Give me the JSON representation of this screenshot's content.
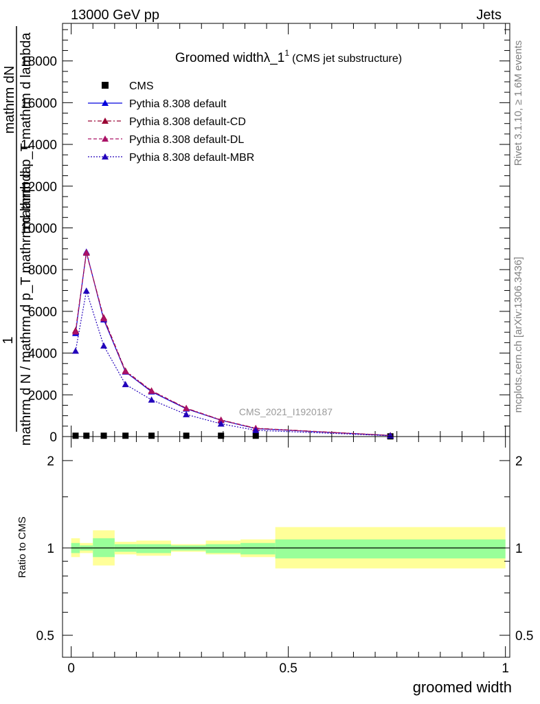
{
  "header": {
    "left": "13000 GeV pp",
    "right": "Jets"
  },
  "side_text": {
    "rivet": "Rivet 3.1.10, ≥ 1.6M events",
    "mcplots": "mcplots.cern.ch [arXiv:1306.3436]"
  },
  "chart_data": [
    {
      "type": "line",
      "title_main": "Groomed width",
      "title_lambda": "λ_1",
      "title_sup": "1",
      "title_note": "(CMS jet substructure)",
      "watermark": "CMS_2021_I1920187",
      "ylabel_parts": [
        "1",
        "mathrm dN",
        "mathrm d N / mathrm d p_T mathrm d lambda",
        "mathrm d p_T mathrm d lambda"
      ],
      "xlim": [
        -0.02,
        1.01
      ],
      "ylim": [
        0,
        19800
      ],
      "y_ticks": [
        0,
        2000,
        4000,
        6000,
        8000,
        10000,
        12000,
        14000,
        16000,
        18000
      ],
      "y_tick_labels": [
        "0",
        "2000",
        "4000",
        "6000",
        "8000",
        "10000",
        "12000",
        "14000",
        "16000",
        "18000"
      ],
      "log_x": false,
      "log_y": false,
      "legend_position": "top-left",
      "series": [
        {
          "name": "CMS",
          "style": "marker",
          "color": "#000000",
          "x": [
            0.01,
            0.035,
            0.075,
            0.125,
            0.185,
            0.265,
            0.345,
            0.425,
            0.735
          ],
          "y": [
            40,
            40,
            40,
            40,
            40,
            40,
            40,
            40,
            10
          ]
        },
        {
          "name": "Pythia 8.308 default",
          "style": "solid",
          "color": "#0000dd",
          "x": [
            0.01,
            0.035,
            0.075,
            0.125,
            0.185,
            0.265,
            0.345,
            0.425,
            0.735
          ],
          "y": [
            4950,
            8850,
            5600,
            3100,
            2150,
            1330,
            780,
            380,
            50
          ]
        },
        {
          "name": "Pythia 8.308 default-CD",
          "style": "dashdot",
          "color": "#990033",
          "x": [
            0.01,
            0.035,
            0.075,
            0.125,
            0.185,
            0.265,
            0.345,
            0.425,
            0.735
          ],
          "y": [
            5080,
            8800,
            5700,
            3150,
            2200,
            1360,
            800,
            400,
            55
          ]
        },
        {
          "name": "Pythia 8.308 default-DL",
          "style": "dashed",
          "color": "#aa1166",
          "x": [
            0.01,
            0.035,
            0.075,
            0.125,
            0.185,
            0.265,
            0.345,
            0.425,
            0.735
          ],
          "y": [
            5020,
            8820,
            5650,
            3120,
            2180,
            1350,
            790,
            390,
            52
          ]
        },
        {
          "name": "Pythia 8.308 default-MBR",
          "style": "dotted",
          "color": "#2200bb",
          "x": [
            0.01,
            0.035,
            0.075,
            0.125,
            0.185,
            0.265,
            0.345,
            0.425,
            0.735
          ],
          "y": [
            4100,
            6980,
            4350,
            2500,
            1760,
            1060,
            610,
            300,
            40
          ]
        }
      ]
    },
    {
      "type": "area",
      "ylabel": "Ratio to CMS",
      "xlabel": "groomed width",
      "xlim": [
        -0.02,
        1.01
      ],
      "ylim": [
        0.42,
        2.42
      ],
      "log_y": true,
      "y_ticks": [
        0.5,
        1,
        2
      ],
      "y_tick_labels": [
        "0.5",
        "1",
        "2"
      ],
      "x_ticks": [
        0,
        0.5,
        1
      ],
      "x_tick_labels": [
        "0",
        "0.5",
        "1"
      ],
      "bands": {
        "edges": [
          0.0,
          0.02,
          0.05,
          0.1,
          0.15,
          0.23,
          0.31,
          0.39,
          0.47,
          1.0
        ],
        "yellow": [
          [
            0.93,
            1.08
          ],
          [
            0.96,
            1.04
          ],
          [
            0.87,
            1.15
          ],
          [
            0.95,
            1.05
          ],
          [
            0.94,
            1.06
          ],
          [
            0.97,
            1.03
          ],
          [
            0.95,
            1.06
          ],
          [
            0.93,
            1.07
          ],
          [
            0.85,
            1.18
          ]
        ],
        "green": [
          [
            0.96,
            1.04
          ],
          [
            0.98,
            1.02
          ],
          [
            0.93,
            1.08
          ],
          [
            0.97,
            1.03
          ],
          [
            0.96,
            1.03
          ],
          [
            0.98,
            1.02
          ],
          [
            0.96,
            1.03
          ],
          [
            0.95,
            1.04
          ],
          [
            0.92,
            1.07
          ]
        ]
      },
      "reference": 1.0
    }
  ]
}
